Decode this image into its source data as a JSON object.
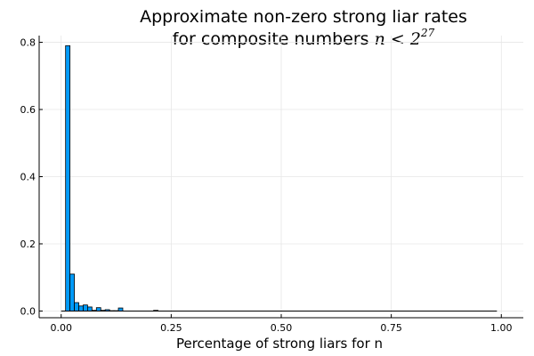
{
  "chart_data": {
    "type": "bar",
    "title_line1": "Approximate non-zero strong liar rates",
    "title_line2_prefix": "for composite numbers ",
    "title_math_var": "n",
    "title_math_rel": " < 2",
    "title_math_exp": "27",
    "xlabel": "Percentage of strong liars for n",
    "ylabel": "",
    "xlim": [
      -0.05,
      1.05
    ],
    "ylim": [
      -0.02,
      0.82
    ],
    "x_ticks": [
      0.0,
      0.25,
      0.5,
      0.75,
      1.0
    ],
    "x_tick_labels": [
      "0.00",
      "0.25",
      "0.50",
      "0.75",
      "1.00"
    ],
    "y_ticks": [
      0.0,
      0.2,
      0.4,
      0.6,
      0.8
    ],
    "y_tick_labels": [
      "0.0",
      "0.2",
      "0.4",
      "0.6",
      "0.8"
    ],
    "bin_width": 0.01,
    "bin_starts": [
      0.0,
      0.01,
      0.02,
      0.03,
      0.04,
      0.05,
      0.06,
      0.07,
      0.08,
      0.09,
      0.1,
      0.11,
      0.12,
      0.13,
      0.21
    ],
    "values": [
      0.0,
      0.79,
      0.11,
      0.025,
      0.015,
      0.018,
      0.012,
      0.002,
      0.01,
      0.002,
      0.004,
      0.001,
      0.001,
      0.009,
      0.002
    ],
    "baseline_range": [
      0.0,
      0.99
    ],
    "grid": true,
    "legend": "none",
    "bar_color": "#009af9",
    "bar_edge_color": "#000000"
  }
}
